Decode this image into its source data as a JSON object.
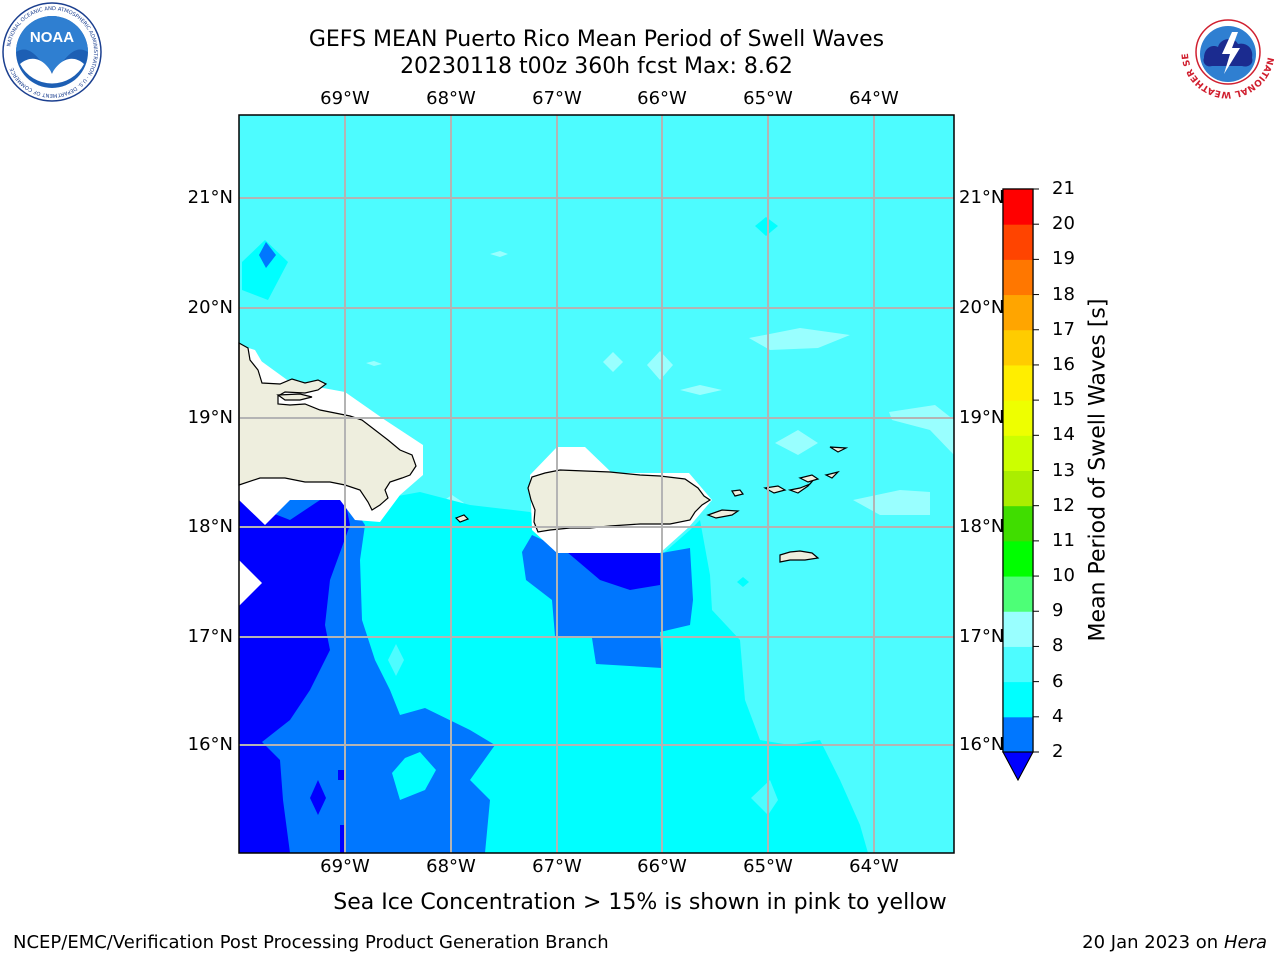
{
  "title": {
    "line1": "GEFS MEAN Puerto Rico Mean Period of Swell Waves",
    "line2": "20230118 t00z 360h fcst   Max: 8.62"
  },
  "logos": {
    "left": {
      "name": "noaa-logo",
      "text": "NOAA",
      "ring_text": "NATIONAL OCEANIC AND ATMOSPHERIC ADMINISTRATION · U.S. DEPARTMENT OF COMMERCE"
    },
    "right": {
      "name": "nws-logo",
      "ring_text": "NATIONAL WEATHER SERVICE"
    }
  },
  "map": {
    "lon_ticks": [
      "69°W",
      "68°W",
      "67°W",
      "66°W",
      "65°W",
      "64°W"
    ],
    "lat_ticks": [
      "21°N",
      "20°N",
      "19°N",
      "18°N",
      "17°N",
      "16°N"
    ],
    "extent": {
      "lon_min": -69.99,
      "lon_max": -63.25,
      "lat_min": 15.02,
      "lat_max": 21.75
    },
    "ocean_background_color": "#4dfcff",
    "land_color": "#eeeede",
    "gridline_color": "#b4b4b4",
    "coastline_color": "#000000"
  },
  "colorbar": {
    "label": "Mean Period of Swell Waves [s]",
    "levels": [
      "2",
      "4",
      "6",
      "8",
      "9",
      "10",
      "11",
      "12",
      "13",
      "14",
      "15",
      "16",
      "17",
      "18",
      "19",
      "20",
      "21"
    ],
    "colors": [
      "#0077ff",
      "#00ffff",
      "#4dfcff",
      "#99ffff",
      "#4dff77",
      "#00ff00",
      "#40dd00",
      "#aaee00",
      "#ccff00",
      "#eeff00",
      "#ffee00",
      "#ffcc00",
      "#ffa500",
      "#ff7700",
      "#ff4400",
      "#ff0000"
    ],
    "under_color": "#0000ff"
  },
  "caption": "Sea Ice Concentration > 15% is shown in pink to yellow",
  "footer": {
    "left": "NCEP/EMC/Verification Post Processing Product Generation Branch",
    "right_date": "20 Jan 2023 on",
    "right_machine": "Hera"
  }
}
